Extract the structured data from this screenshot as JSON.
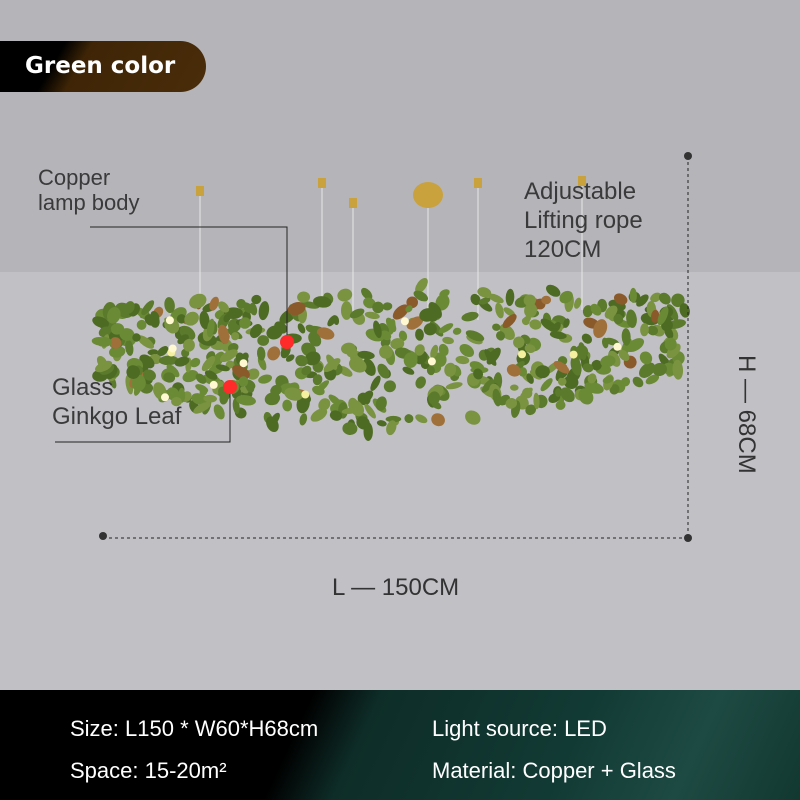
{
  "badge": {
    "label": "Green color",
    "color": "#4a2d0a"
  },
  "callouts": {
    "copper_body": [
      "Copper",
      "lamp body"
    ],
    "glass_leaf": [
      "Glass",
      "Ginkgo Leaf"
    ],
    "rope": [
      "Adjustable",
      "Lifting rope",
      "120CM"
    ]
  },
  "dimensions": {
    "length": "L — 150CM",
    "height": "H — 68CM"
  },
  "specs": {
    "size": "Size: L150 * W60*H68cm",
    "light": "Light source: LED",
    "space": "Space: 15-20m²",
    "material": "Material: Copper + Glass"
  },
  "colors": {
    "leaf": "#5b7a2c",
    "marker": "#ff2a2a",
    "brass": "#c9a23e"
  }
}
